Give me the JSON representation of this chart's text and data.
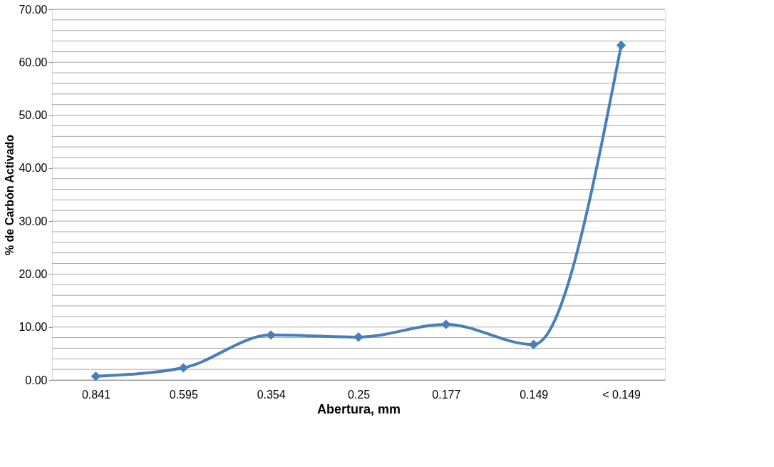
{
  "chart_data": {
    "type": "line",
    "xlabel": "Abertura, mm",
    "ylabel": "% de Carbón Activado",
    "categories": [
      "0.841",
      "0.595",
      "0.354",
      "0.25",
      "0.177",
      "0.149",
      "< 0.149"
    ],
    "series": [
      {
        "color": "#4a7ebb",
        "values": [
          0.7,
          2.3,
          8.5,
          8.1,
          10.5,
          6.7,
          63.2
        ]
      }
    ],
    "ylim": [
      0,
      70
    ],
    "yticks": [
      {
        "value": 0,
        "label": "0.00"
      },
      {
        "value": 2,
        "label": null
      },
      {
        "value": 4,
        "label": null
      },
      {
        "value": 6,
        "label": null
      },
      {
        "value": 8,
        "label": null
      },
      {
        "value": 10,
        "label": "10.00"
      },
      {
        "value": 12,
        "label": null
      },
      {
        "value": 14,
        "label": null
      },
      {
        "value": 16,
        "label": null
      },
      {
        "value": 18,
        "label": null
      },
      {
        "value": 20,
        "label": "20.00"
      },
      {
        "value": 22,
        "label": null
      },
      {
        "value": 24,
        "label": null
      },
      {
        "value": 26,
        "label": null
      },
      {
        "value": 28,
        "label": null
      },
      {
        "value": 30,
        "label": "30.00"
      },
      {
        "value": 32,
        "label": null
      },
      {
        "value": 34,
        "label": null
      },
      {
        "value": 36,
        "label": null
      },
      {
        "value": 38,
        "label": null
      },
      {
        "value": 40,
        "label": "40.00"
      },
      {
        "value": 42,
        "label": null
      },
      {
        "value": 44,
        "label": null
      },
      {
        "value": 46,
        "label": null
      },
      {
        "value": 48,
        "label": null
      },
      {
        "value": 50,
        "label": "50.00"
      },
      {
        "value": 52,
        "label": null
      },
      {
        "value": 54,
        "label": null
      },
      {
        "value": 56,
        "label": null
      },
      {
        "value": 58,
        "label": null
      },
      {
        "value": 60,
        "label": "60.00"
      },
      {
        "value": 62,
        "label": null
      },
      {
        "value": 64,
        "label": null
      },
      {
        "value": 66,
        "label": null
      },
      {
        "value": 68,
        "label": null
      },
      {
        "value": 70,
        "label": "70.00"
      }
    ],
    "grid": "y",
    "marker": "diamond",
    "line_style": "solid"
  }
}
